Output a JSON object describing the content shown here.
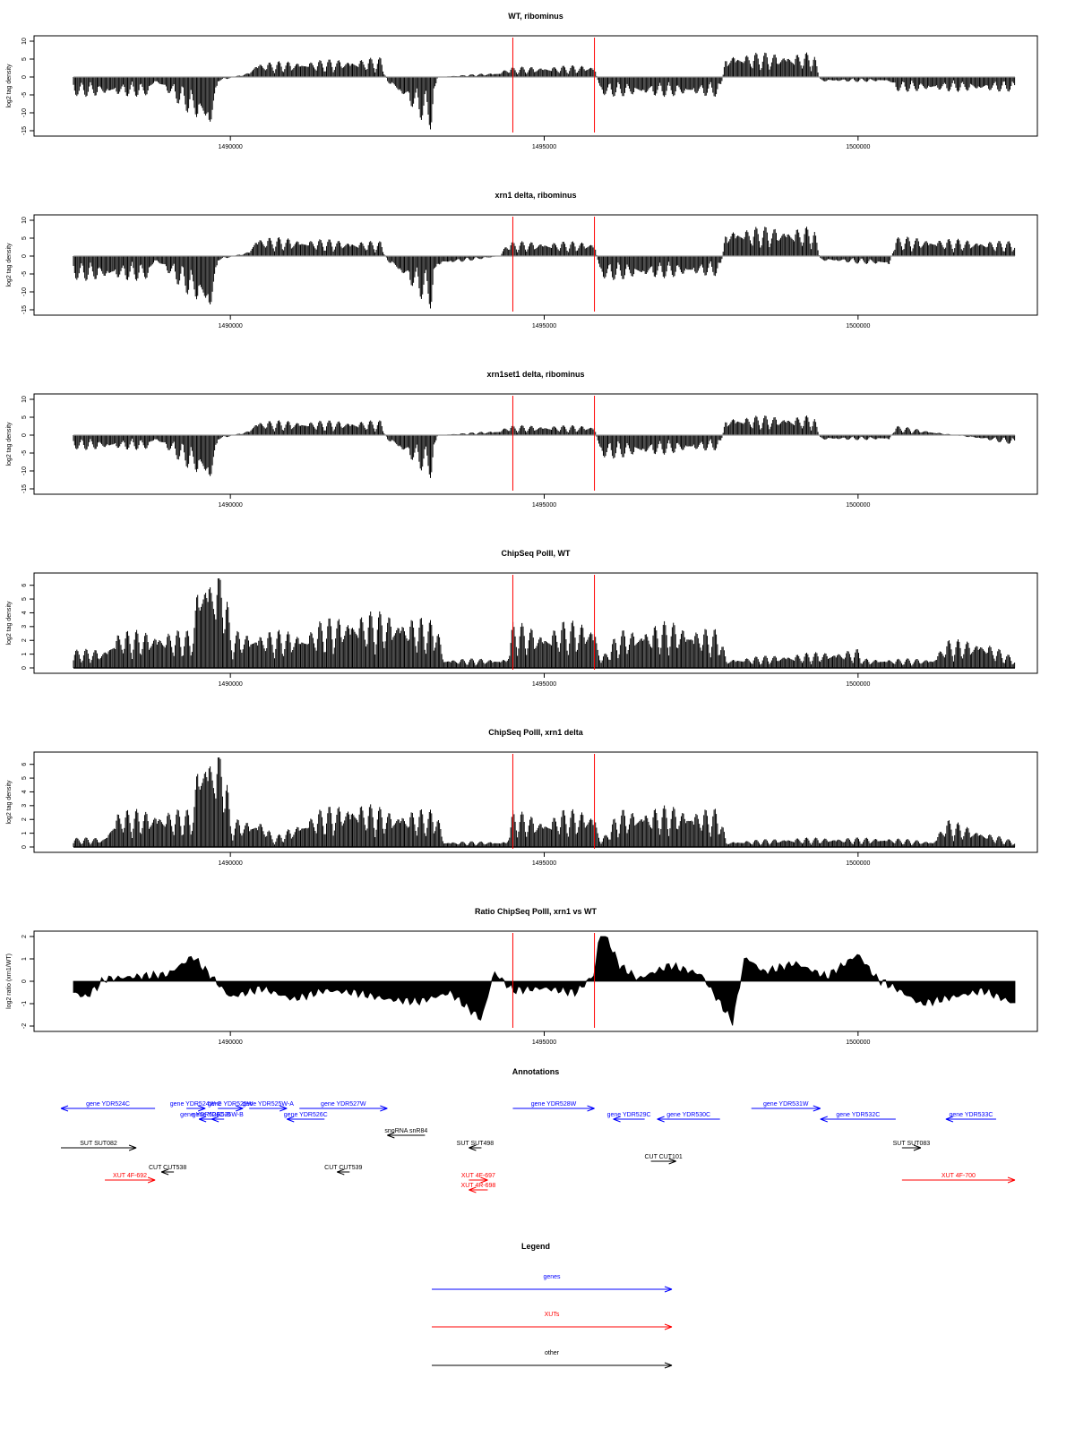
{
  "colors": {
    "data": "#000000",
    "marker": "#ff0000",
    "baseline": "#999999",
    "gene": "#0000ff",
    "xut": "#ff0000",
    "other": "#000000"
  },
  "chart_data": [
    {
      "type": "bar",
      "title": "WT, ribominus",
      "ylabel": "log2 tag density",
      "xlim": [
        1487500,
        1502600
      ],
      "ylim": [
        -15,
        10
      ],
      "x_ticks": [
        1490000,
        1495000,
        1500000
      ],
      "x_tick_labels": [
        "1490000",
        "1495000",
        "1500000"
      ],
      "y_ticks": [
        -15,
        -10,
        -5,
        0,
        5,
        10
      ],
      "y_tick_labels": [
        "-15",
        "-10",
        "-5",
        "0",
        "5",
        "10"
      ],
      "marker_lines": [
        1494500,
        1495800
      ],
      "series": [
        {
          "x": [
            1487500,
            1488700,
            1488800,
            1489700,
            1489800,
            1490300,
            1490400,
            1492400,
            1492500,
            1493200,
            1493300,
            1494300,
            1494400,
            1495800,
            1495900,
            1497800,
            1497900,
            1499300,
            1499400,
            1500500,
            1500600,
            1502500
          ],
          "values": [
            -4,
            -4,
            -1,
            -12,
            -1,
            1,
            3,
            4,
            -1,
            -11,
            0,
            1,
            2,
            2.5,
            -4,
            -4,
            5,
            5,
            -1,
            -1,
            -3,
            -3
          ]
        }
      ]
    },
    {
      "type": "bar",
      "title": "xrn1 delta, ribominus",
      "ylabel": "log2 tag density",
      "xlim": [
        1487500,
        1502600
      ],
      "ylim": [
        -15,
        10
      ],
      "x_ticks": [
        1490000,
        1495000,
        1500000
      ],
      "x_tick_labels": [
        "1490000",
        "1495000",
        "1500000"
      ],
      "y_ticks": [
        -15,
        -10,
        -5,
        0,
        5,
        10
      ],
      "y_tick_labels": [
        "-15",
        "-10",
        "-5",
        "0",
        "5",
        "10"
      ],
      "marker_lines": [
        1494500,
        1495800
      ],
      "series": [
        {
          "x": [
            1487500,
            1488700,
            1488800,
            1489700,
            1489800,
            1490300,
            1490400,
            1492400,
            1492500,
            1493200,
            1493300,
            1494300,
            1494400,
            1495800,
            1495900,
            1497800,
            1497900,
            1499300,
            1499400,
            1500500,
            1500600,
            1502500
          ],
          "values": [
            -5,
            -5,
            -1,
            -13,
            -1,
            1,
            4,
            3,
            -1,
            -11,
            -2,
            0,
            3,
            3,
            -5,
            -4,
            6,
            6,
            -1,
            -2,
            4,
            3
          ]
        }
      ]
    },
    {
      "type": "bar",
      "title": "xrn1set1 delta, ribominus",
      "ylabel": "log2 tag density",
      "xlim": [
        1487500,
        1502600
      ],
      "ylim": [
        -15,
        10
      ],
      "x_ticks": [
        1490000,
        1495000,
        1500000
      ],
      "x_tick_labels": [
        "1490000",
        "1495000",
        "1500000"
      ],
      "y_ticks": [
        -15,
        -10,
        -5,
        0,
        5,
        10
      ],
      "y_tick_labels": [
        "-15",
        "-10",
        "-5",
        "0",
        "5",
        "10"
      ],
      "marker_lines": [
        1494500,
        1495800
      ],
      "series": [
        {
          "x": [
            1487500,
            1488700,
            1488800,
            1489700,
            1489800,
            1490300,
            1490400,
            1492400,
            1492500,
            1493200,
            1493300,
            1494300,
            1494400,
            1495800,
            1495900,
            1497800,
            1497900,
            1499300,
            1499400,
            1500500,
            1500600,
            1502500
          ],
          "values": [
            -3,
            -3,
            -1,
            -11,
            -1,
            1,
            3,
            3,
            -1,
            -9,
            0,
            1,
            2,
            2,
            -5,
            -3,
            4,
            4,
            -1,
            -1,
            2,
            -2
          ]
        }
      ]
    },
    {
      "type": "bar",
      "title": "ChipSeq PolII, WT",
      "ylabel": "log2 tag density",
      "xlim": [
        1487500,
        1502600
      ],
      "ylim": [
        0,
        6.5
      ],
      "x_ticks": [
        1490000,
        1495000,
        1500000
      ],
      "x_tick_labels": [
        "1490000",
        "1495000",
        "1500000"
      ],
      "y_ticks": [
        0,
        1,
        2,
        3,
        4,
        5,
        6
      ],
      "y_tick_labels": [
        "0",
        "1",
        "2",
        "3",
        "4",
        "5",
        "6"
      ],
      "marker_lines": [
        1494500,
        1495800
      ],
      "series": [
        {
          "x": [
            1487500,
            1488000,
            1488200,
            1489400,
            1489500,
            1489900,
            1490000,
            1491200,
            1491400,
            1492000,
            1492500,
            1493300,
            1493400,
            1494400,
            1494500,
            1495000,
            1495300,
            1495800,
            1495900,
            1496200,
            1497000,
            1497800,
            1497900,
            1500000,
            1500100,
            1501200,
            1501400,
            1502000,
            1502500
          ],
          "values": [
            1,
            1,
            2,
            2,
            5.5,
            5.5,
            2,
            2,
            2.5,
            3,
            3,
            2.5,
            0.5,
            0.5,
            2.5,
            2,
            2.5,
            2.5,
            0.5,
            2,
            2.5,
            2,
            0.5,
            1,
            0.5,
            0.5,
            1.5,
            1.5,
            0.5
          ]
        }
      ]
    },
    {
      "type": "bar",
      "title": "ChipSeq PolII, xrn1 delta",
      "ylabel": "log2 tag density",
      "xlim": [
        1487500,
        1502600
      ],
      "ylim": [
        0,
        6.5
      ],
      "x_ticks": [
        1490000,
        1495000,
        1500000
      ],
      "x_tick_labels": [
        "1490000",
        "1495000",
        "1500000"
      ],
      "y_ticks": [
        0,
        1,
        2,
        3,
        4,
        5,
        6
      ],
      "y_tick_labels": [
        "0",
        "1",
        "2",
        "3",
        "4",
        "5",
        "6"
      ],
      "marker_lines": [
        1494500,
        1495800
      ],
      "series": [
        {
          "x": [
            1487500,
            1488000,
            1488200,
            1489400,
            1489500,
            1489900,
            1490000,
            1490500,
            1490700,
            1491400,
            1492000,
            1492500,
            1493300,
            1493400,
            1494400,
            1494500,
            1495000,
            1495300,
            1495800,
            1495900,
            1496200,
            1497000,
            1497800,
            1497900,
            1499000,
            1500500,
            1501200,
            1501400,
            1502500
          ],
          "values": [
            0.5,
            0.5,
            2,
            2,
            5.5,
            5.5,
            1.5,
            1.5,
            0.5,
            2,
            2.5,
            2,
            2,
            0.3,
            0.3,
            2,
            1.5,
            2,
            2,
            0.3,
            2,
            2.2,
            2,
            0.3,
            0.5,
            0.5,
            0.3,
            1.5,
            0.3
          ]
        }
      ]
    },
    {
      "type": "area",
      "title": "Ratio ChipSeq PolII, xrn1 vs WT",
      "ylabel": "log2 ratio (xrn1/WT)",
      "xlim": [
        1487500,
        1502600
      ],
      "ylim": [
        -2,
        2
      ],
      "x_ticks": [
        1490000,
        1495000,
        1500000
      ],
      "x_tick_labels": [
        "1490000",
        "1495000",
        "1500000"
      ],
      "y_ticks": [
        -2,
        -1,
        0,
        1,
        2
      ],
      "y_tick_labels": [
        "-2",
        "-1",
        "0",
        "1",
        "2"
      ],
      "marker_lines": [
        1494500,
        1495800
      ],
      "series": [
        {
          "x": [
            1487500,
            1487700,
            1488000,
            1488500,
            1489000,
            1489400,
            1489700,
            1490000,
            1490500,
            1491000,
            1491500,
            1492000,
            1492500,
            1493000,
            1493500,
            1494000,
            1494200,
            1494500,
            1495000,
            1495500,
            1495800,
            1495900,
            1496200,
            1496500,
            1497000,
            1497500,
            1498000,
            1498200,
            1498500,
            1499000,
            1499500,
            1500000,
            1500300,
            1500600,
            1501000,
            1501500,
            1502000,
            1502500
          ],
          "values": [
            -0.5,
            -0.7,
            0.1,
            0.2,
            0.3,
            1.1,
            0.2,
            -0.7,
            -0.3,
            -0.8,
            -0.4,
            -0.5,
            -0.8,
            -0.9,
            -0.5,
            -1.7,
            0.4,
            -0.4,
            -0.3,
            -0.5,
            0.3,
            2.5,
            0.7,
            0.1,
            0.7,
            0.3,
            -1.8,
            1.1,
            0.4,
            0.8,
            0.2,
            1.2,
            0.1,
            -0.3,
            -1.0,
            -0.7,
            -0.4,
            -1.0
          ]
        }
      ]
    }
  ],
  "annotations": {
    "title": "Annotations",
    "items": [
      {
        "label": "gene YDR524C",
        "type": "gene",
        "start": 1487300,
        "end": 1488800,
        "dir": "left",
        "row": 0
      },
      {
        "label": "gene YDR524W-C",
        "type": "gene",
        "start": 1489300,
        "end": 1489600,
        "dir": "right",
        "row": 0
      },
      {
        "label": "gene YDR525W",
        "type": "gene",
        "start": 1489800,
        "end": 1490200,
        "dir": "right",
        "row": 0
      },
      {
        "label": "gene YDR525W-A",
        "type": "gene",
        "start": 1490300,
        "end": 1490900,
        "dir": "right",
        "row": 0
      },
      {
        "label": "gene YDR527W",
        "type": "gene",
        "start": 1491100,
        "end": 1492500,
        "dir": "right",
        "row": 0
      },
      {
        "label": "gene YDR524C-B",
        "type": "gene",
        "start": 1489500,
        "end": 1489700,
        "dir": "left",
        "row": 1
      },
      {
        "label": "gene YDR525W-B",
        "type": "gene",
        "start": 1489700,
        "end": 1489900,
        "dir": "left",
        "row": 1
      },
      {
        "label": "gene YDR526C",
        "type": "gene",
        "start": 1490900,
        "end": 1491500,
        "dir": "left",
        "row": 1
      },
      {
        "label": "gene YDR528W",
        "type": "gene",
        "start": 1494500,
        "end": 1495800,
        "dir": "right",
        "row": 0
      },
      {
        "label": "gene YDR529C",
        "type": "gene",
        "start": 1496100,
        "end": 1496600,
        "dir": "left",
        "row": 1
      },
      {
        "label": "gene YDR530C",
        "type": "gene",
        "start": 1496800,
        "end": 1497800,
        "dir": "left",
        "row": 1
      },
      {
        "label": "gene YDR531W",
        "type": "gene",
        "start": 1498300,
        "end": 1499400,
        "dir": "right",
        "row": 0
      },
      {
        "label": "gene YDR532C",
        "type": "gene",
        "start": 1499400,
        "end": 1500600,
        "dir": "left",
        "row": 1
      },
      {
        "label": "gene YDR533C",
        "type": "gene",
        "start": 1501400,
        "end": 1502200,
        "dir": "left",
        "row": 1
      },
      {
        "label": "snoRNA snR84",
        "type": "other",
        "start": 1492500,
        "end": 1493100,
        "dir": "left",
        "row": 2
      },
      {
        "label": "SUT SUT082",
        "type": "other",
        "start": 1487300,
        "end": 1488500,
        "dir": "right",
        "row": 3
      },
      {
        "label": "SUT SUT498",
        "type": "other",
        "start": 1493800,
        "end": 1494000,
        "dir": "left",
        "row": 3
      },
      {
        "label": "SUT SUT083",
        "type": "other",
        "start": 1500700,
        "end": 1501000,
        "dir": "right",
        "row": 3
      },
      {
        "label": "CUT CUT101",
        "type": "other",
        "start": 1496700,
        "end": 1497100,
        "dir": "right",
        "row": 4
      },
      {
        "label": "CUT CUT538",
        "type": "other",
        "start": 1488900,
        "end": 1489100,
        "dir": "left",
        "row": 5
      },
      {
        "label": "CUT CUT539",
        "type": "other",
        "start": 1491700,
        "end": 1491900,
        "dir": "left",
        "row": 5
      },
      {
        "label": "XUT 4F-692",
        "type": "xut",
        "start": 1488000,
        "end": 1488800,
        "dir": "right",
        "row": 6
      },
      {
        "label": "XUT 4F-697",
        "type": "xut",
        "start": 1493800,
        "end": 1494100,
        "dir": "right",
        "row": 6
      },
      {
        "label": "XUT 4F-700",
        "type": "xut",
        "start": 1500700,
        "end": 1502500,
        "dir": "right",
        "row": 6
      },
      {
        "label": "XUT 4R-698",
        "type": "xut",
        "start": 1493800,
        "end": 1494100,
        "dir": "left",
        "row": 7
      }
    ]
  },
  "legend": {
    "title": "Legend",
    "items": [
      {
        "label": "genes",
        "type": "gene"
      },
      {
        "label": "XUTs",
        "type": "xut"
      },
      {
        "label": "other",
        "type": "other"
      }
    ]
  }
}
